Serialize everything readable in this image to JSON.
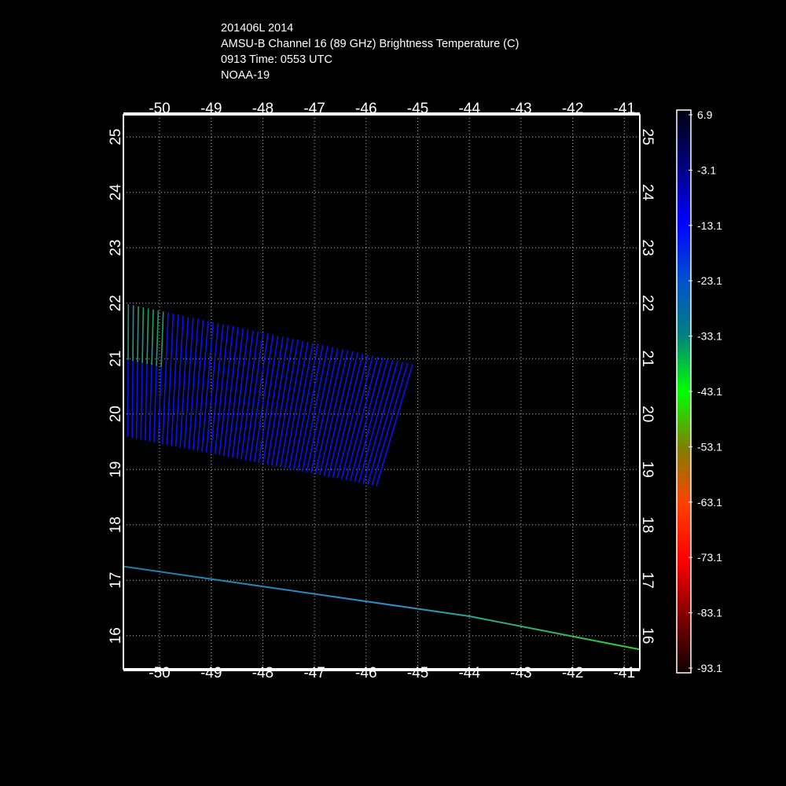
{
  "header": {
    "line1": "201406L 2014",
    "line2": "AMSU-B Channel 16 (89 GHz) Brightness Temperature (C)",
    "line3": "0913 Time: 0553 UTC",
    "line4": "NOAA-19"
  },
  "chart_data": {
    "type": "heatmap",
    "title": "AMSU-B Channel 16 (89 GHz) Brightness Temperature (C)",
    "xlabel": "",
    "ylabel": "",
    "xlim": [
      -50.7,
      -40.7
    ],
    "ylim": [
      15.4,
      25.4
    ],
    "x_ticks": [
      -50,
      -49,
      -48,
      -47,
      -46,
      -45,
      -44,
      -43,
      -42,
      -41
    ],
    "y_ticks": [
      16,
      17,
      18,
      19,
      20,
      21,
      22,
      23,
      24,
      25
    ],
    "grid": true,
    "colorbar": {
      "labels": [
        "6.9",
        "-3.1",
        "-13.1",
        "-23.1",
        "-33.1",
        "-43.1",
        "-53.1",
        "-63.1",
        "-73.1",
        "-83.1",
        "-93.1"
      ],
      "min": -93.1,
      "max": 6.9,
      "stops": [
        {
          "value": 6.9,
          "color": "#000010"
        },
        {
          "value": -3.1,
          "color": "#000080"
        },
        {
          "value": -13.1,
          "color": "#0000ff"
        },
        {
          "value": -23.1,
          "color": "#0050d0"
        },
        {
          "value": -33.1,
          "color": "#008080"
        },
        {
          "value": -43.1,
          "color": "#00ff00"
        },
        {
          "value": -53.1,
          "color": "#808000"
        },
        {
          "value": -63.1,
          "color": "#ff4000"
        },
        {
          "value": -73.1,
          "color": "#ff0000"
        },
        {
          "value": -83.1,
          "color": "#800000"
        },
        {
          "value": -93.1,
          "color": "#100000"
        }
      ]
    },
    "swath": {
      "corners": [
        {
          "lon": -50.7,
          "lat": 22.0
        },
        {
          "lon": -45.1,
          "lat": 20.9
        },
        {
          "lon": -45.8,
          "lat": 18.7
        },
        {
          "lon": -50.7,
          "lat": 19.6
        }
      ],
      "scan_lines": 58,
      "main_color": "#0a10ff",
      "warm_patch": {
        "lon_range": [
          -50.7,
          -49.9
        ],
        "lat_range": [
          21.0,
          22.0
        ],
        "color": "#1fae4a"
      }
    },
    "track_line": {
      "points": [
        {
          "lon": -50.7,
          "lat": 17.25
        },
        {
          "lon": -44.0,
          "lat": 16.35
        },
        {
          "lon": -40.7,
          "lat": 15.75
        }
      ],
      "colors": [
        "#1a7fa8",
        "#2a8fcf",
        "#30d030"
      ]
    }
  }
}
